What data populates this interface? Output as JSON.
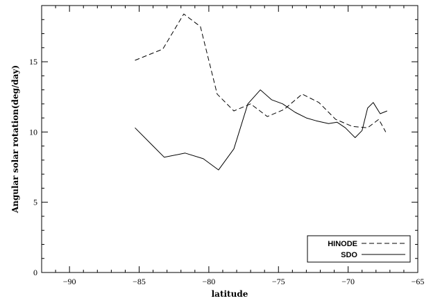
{
  "chart_data": {
    "type": "line",
    "title": "",
    "xlabel": "latitude",
    "ylabel": "Angular solar rotation(deg/day)",
    "xlim": [
      -92,
      -65
    ],
    "ylim": [
      0,
      19
    ],
    "x_ticks": [
      -90,
      -85,
      -80,
      -75,
      -70,
      -65
    ],
    "y_ticks": [
      0,
      5,
      10,
      15
    ],
    "grid": false,
    "legend_position": "bottom-right",
    "series": [
      {
        "name": "HINODE",
        "style": "dashed",
        "color": "#000000",
        "x": [
          -85.3,
          -83.3,
          -81.8,
          -80.6,
          -79.4,
          -78.2,
          -77.0,
          -75.8,
          -74.6,
          -73.3,
          -72.1,
          -70.9,
          -69.7,
          -68.6,
          -67.8,
          -67.3
        ],
        "y": [
          15.1,
          15.9,
          18.4,
          17.5,
          12.7,
          11.5,
          12.0,
          11.1,
          11.6,
          12.7,
          12.1,
          10.9,
          10.4,
          10.3,
          10.9,
          10.0
        ]
      },
      {
        "name": "SDO",
        "style": "solid",
        "color": "#000000",
        "x": [
          -85.3,
          -84.0,
          -83.2,
          -81.7,
          -80.4,
          -79.3,
          -78.2,
          -77.2,
          -76.3,
          -75.5,
          -74.7,
          -73.8,
          -73.0,
          -72.3,
          -71.4,
          -70.8,
          -70.2,
          -69.5,
          -69.0,
          -68.6,
          -68.2,
          -67.7,
          -67.2
        ],
        "y": [
          10.3,
          9.0,
          8.2,
          8.5,
          8.1,
          7.3,
          8.8,
          12.0,
          13.0,
          12.3,
          12.0,
          11.4,
          11.0,
          10.8,
          10.6,
          10.7,
          10.3,
          9.6,
          10.1,
          11.7,
          12.1,
          11.3,
          11.5
        ]
      }
    ]
  }
}
